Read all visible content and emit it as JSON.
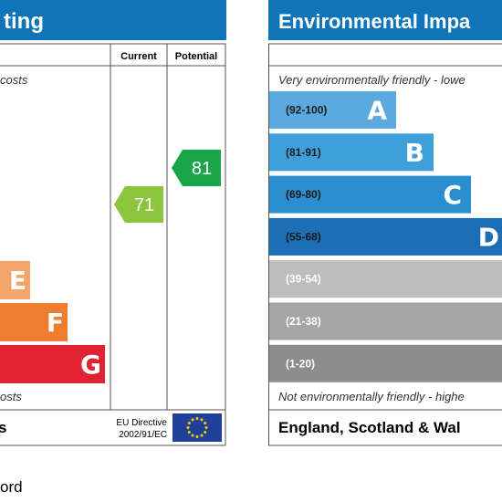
{
  "energy_panel": {
    "title": "ting",
    "col_current": "Current",
    "col_potential": "Potential",
    "top_note": "costs",
    "bottom_note": "osts",
    "footer_left": "s",
    "eu_directive_line1": "EU Directive",
    "eu_directive_line2": "2002/91/EC",
    "accent_color": "#0f74b8"
  },
  "environmental_panel": {
    "title": "Environmental Impa",
    "top_note": "Very environmentally friendly - lowe",
    "bottom_note": "Not environmentally friendly - highe",
    "footer": "England, Scotland & Wal",
    "accent_color": "#0f74b8"
  },
  "caption": "ord",
  "chart_data": [
    {
      "type": "bar",
      "title": "ting",
      "categories": [
        "E",
        "F",
        "G"
      ],
      "band_colors": [
        "#f4a66a",
        "#ee7d30",
        "#e02232"
      ],
      "current": {
        "value": 71,
        "color": "#8cc63f"
      },
      "potential": {
        "value": 81,
        "color": "#1aa54b"
      }
    },
    {
      "type": "bar",
      "title": "Environmental Impa",
      "categories": [
        "A",
        "B",
        "C",
        "D",
        "",
        "",
        ""
      ],
      "ranges": [
        "(92-100)",
        "(81-91)",
        "(69-80)",
        "(55-68)",
        "(39-54)",
        "(21-38)",
        "(1-20)"
      ],
      "band_colors": [
        "#5aa9df",
        "#3f9fd9",
        "#2a8fd0",
        "#1d6fb5",
        "#bdbdbd",
        "#a6a6a6",
        "#8c8c8c"
      ]
    }
  ]
}
